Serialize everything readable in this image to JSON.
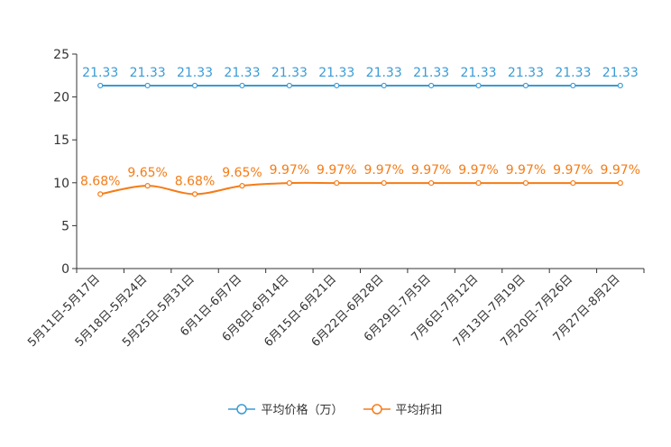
{
  "chart_data": {
    "type": "line",
    "categories": [
      "5月11日-5月17日",
      "5月18日-5月24日",
      "5月25日-5月31日",
      "6月1日-6月7日",
      "6月8日-6月14日",
      "6月15日-6月21日",
      "6月22日-6月28日",
      "6月29日-7月5日",
      "7月6日-7月12日",
      "7月13日-7月19日",
      "7月20日-7月26日",
      "7月27日-8月2日"
    ],
    "ylim": [
      0,
      25
    ],
    "yticks": [
      0,
      5,
      10,
      15,
      20,
      25
    ],
    "series": [
      {
        "name": "平均价格（万）",
        "color": "#3a9bd5",
        "values": [
          21.33,
          21.33,
          21.33,
          21.33,
          21.33,
          21.33,
          21.33,
          21.33,
          21.33,
          21.33,
          21.33,
          21.33
        ],
        "labels": [
          "21.33",
          "21.33",
          "21.33",
          "21.33",
          "21.33",
          "21.33",
          "21.33",
          "21.33",
          "21.33",
          "21.33",
          "21.33",
          "21.33"
        ]
      },
      {
        "name": "平均折扣",
        "color": "#f57c17",
        "values": [
          8.68,
          9.65,
          8.68,
          9.65,
          9.97,
          9.97,
          9.97,
          9.97,
          9.97,
          9.97,
          9.97,
          9.97
        ],
        "labels": [
          "8.68%",
          "9.65%",
          "8.68%",
          "9.65%",
          "9.97%",
          "9.97%",
          "9.97%",
          "9.97%",
          "9.97%",
          "9.97%",
          "9.97%",
          "9.97%"
        ]
      }
    ]
  },
  "legend": {
    "series0": "平均价格（万）",
    "series1": "平均折扣"
  }
}
